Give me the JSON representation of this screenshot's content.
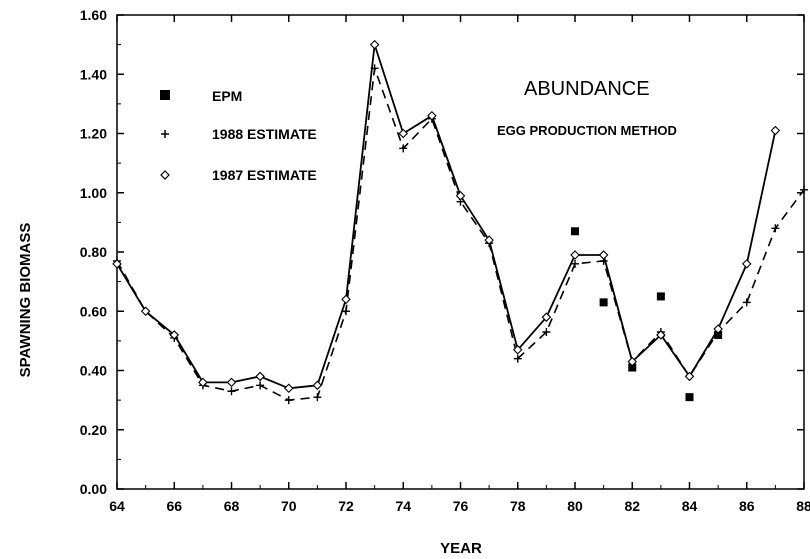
{
  "chart_data": {
    "type": "line",
    "title": "ABUNDANCE",
    "subtitle": "EGG PRODUCTION METHOD",
    "xlabel": "YEAR",
    "ylabel": "SPAWNING BIOMASS",
    "xlim": [
      64,
      88
    ],
    "ylim": [
      0.0,
      1.6
    ],
    "x_ticks": [
      "64",
      "66",
      "68",
      "70",
      "72",
      "74",
      "76",
      "78",
      "80",
      "82",
      "84",
      "86",
      "88"
    ],
    "y_ticks": [
      "0.00",
      "0.20",
      "0.40",
      "0.60",
      "0.80",
      "1.00",
      "1.20",
      "1.40",
      "1.60"
    ],
    "grid": false,
    "legend_position": "top-left",
    "series": [
      {
        "name": "EPM",
        "style": "markers",
        "marker": "square",
        "x": [
          80,
          81,
          82,
          83,
          84,
          85
        ],
        "y": [
          0.87,
          0.63,
          0.41,
          0.65,
          0.31,
          0.52
        ]
      },
      {
        "name": "1988 ESTIMATE",
        "style": "dashed",
        "marker": "plus",
        "x": [
          64,
          65,
          66,
          67,
          68,
          69,
          70,
          71,
          72,
          73,
          74,
          75,
          76,
          77,
          78,
          79,
          80,
          81,
          82,
          83,
          84,
          85,
          86,
          87,
          88
        ],
        "y": [
          0.77,
          0.6,
          0.51,
          0.35,
          0.33,
          0.35,
          0.3,
          0.31,
          0.6,
          1.42,
          1.15,
          1.25,
          0.97,
          0.83,
          0.44,
          0.53,
          0.76,
          0.77,
          0.43,
          0.53,
          0.38,
          0.53,
          0.63,
          0.88,
          1.01
        ]
      },
      {
        "name": "1987 ESTIMATE",
        "style": "solid",
        "marker": "diamond",
        "x": [
          64,
          65,
          66,
          67,
          68,
          69,
          70,
          71,
          72,
          73,
          74,
          75,
          76,
          77,
          78,
          79,
          80,
          81,
          82,
          83,
          84,
          85,
          86,
          87
        ],
        "y": [
          0.76,
          0.6,
          0.52,
          0.36,
          0.36,
          0.38,
          0.34,
          0.35,
          0.64,
          1.5,
          1.2,
          1.26,
          0.99,
          0.84,
          0.47,
          0.58,
          0.79,
          0.79,
          0.43,
          0.52,
          0.38,
          0.54,
          0.76,
          1.21
        ]
      }
    ]
  }
}
